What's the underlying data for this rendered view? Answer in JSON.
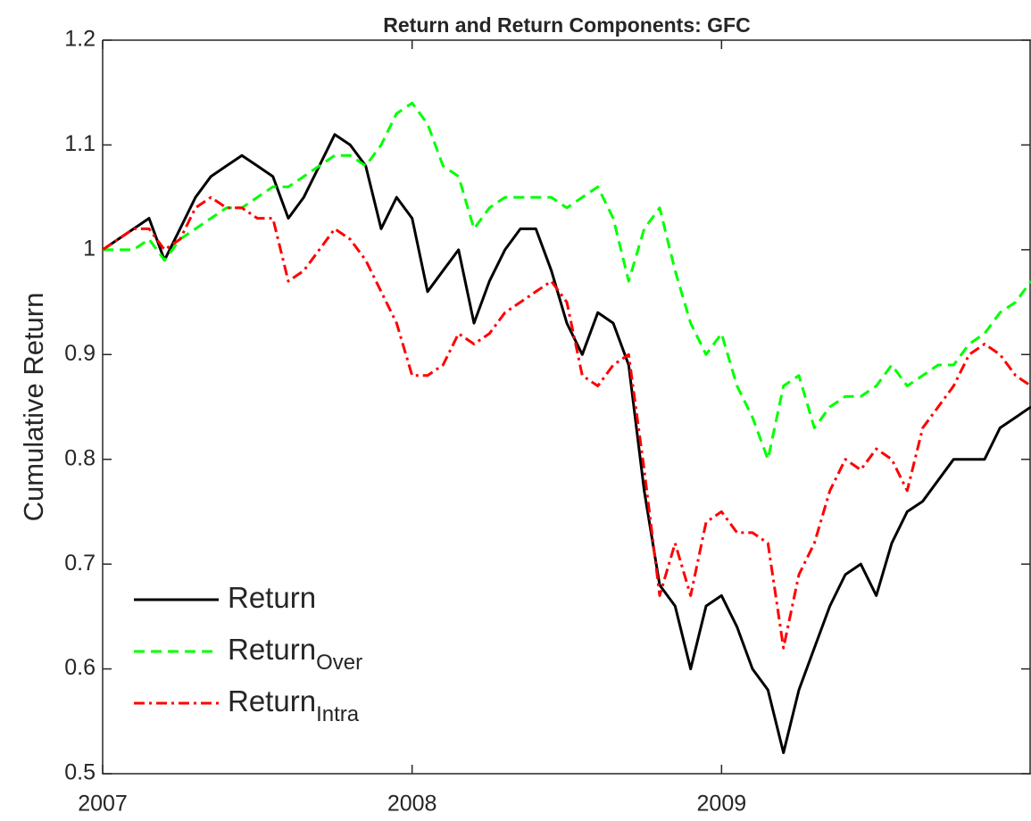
{
  "chart_data": {
    "type": "line",
    "title": "Return and Return Components: GFC",
    "y_label": "Cumulative Return",
    "xlim": [
      2007,
      2010
    ],
    "xticks": [
      2007,
      2008,
      2009
    ],
    "ylim": [
      0.5,
      1.2
    ],
    "yticks": [
      0.5,
      0.6,
      0.7,
      0.8,
      0.9,
      1,
      1.1,
      1.2
    ],
    "grid": false,
    "legend": "southwest",
    "series": [
      {
        "name": "Return",
        "color": "#000000",
        "style": "solid",
        "values": [
          1.0,
          1.01,
          1.02,
          1.03,
          0.99,
          1.02,
          1.05,
          1.07,
          1.08,
          1.09,
          1.08,
          1.07,
          1.03,
          1.05,
          1.08,
          1.11,
          1.1,
          1.08,
          1.02,
          1.05,
          1.03,
          0.96,
          0.98,
          1.0,
          0.93,
          0.97,
          1.0,
          1.02,
          1.02,
          0.98,
          0.93,
          0.9,
          0.94,
          0.93,
          0.89,
          0.77,
          0.68,
          0.66,
          0.6,
          0.66,
          0.67,
          0.64,
          0.6,
          0.58,
          0.52,
          0.58,
          0.62,
          0.66,
          0.69,
          0.7,
          0.67,
          0.72,
          0.75,
          0.76,
          0.78,
          0.8,
          0.8,
          0.8,
          0.83,
          0.84,
          0.85
        ]
      },
      {
        "name": "Return",
        "name_subscript": "Over",
        "color": "#00ff00",
        "style": "dashed",
        "values": [
          1.0,
          1.0,
          1.0,
          1.01,
          0.99,
          1.01,
          1.02,
          1.03,
          1.04,
          1.04,
          1.05,
          1.06,
          1.06,
          1.07,
          1.08,
          1.09,
          1.09,
          1.08,
          1.1,
          1.13,
          1.14,
          1.12,
          1.08,
          1.07,
          1.02,
          1.04,
          1.05,
          1.05,
          1.05,
          1.05,
          1.04,
          1.05,
          1.06,
          1.03,
          0.97,
          1.02,
          1.04,
          0.98,
          0.93,
          0.9,
          0.92,
          0.87,
          0.84,
          0.8,
          0.87,
          0.88,
          0.83,
          0.85,
          0.86,
          0.86,
          0.87,
          0.89,
          0.87,
          0.88,
          0.89,
          0.89,
          0.91,
          0.92,
          0.94,
          0.95,
          0.97
        ]
      },
      {
        "name": "Return",
        "name_subscript": "Intra",
        "color": "#ff0000",
        "style": "dashdot",
        "values": [
          1.0,
          1.01,
          1.02,
          1.02,
          1.0,
          1.01,
          1.04,
          1.05,
          1.04,
          1.04,
          1.03,
          1.03,
          0.97,
          0.98,
          1.0,
          1.02,
          1.01,
          0.99,
          0.96,
          0.93,
          0.88,
          0.88,
          0.89,
          0.92,
          0.91,
          0.92,
          0.94,
          0.95,
          0.96,
          0.97,
          0.95,
          0.88,
          0.87,
          0.89,
          0.9,
          0.79,
          0.67,
          0.72,
          0.67,
          0.74,
          0.75,
          0.73,
          0.73,
          0.72,
          0.62,
          0.69,
          0.72,
          0.77,
          0.8,
          0.79,
          0.81,
          0.8,
          0.77,
          0.83,
          0.85,
          0.87,
          0.9,
          0.91,
          0.9,
          0.88,
          0.87
        ]
      }
    ]
  }
}
